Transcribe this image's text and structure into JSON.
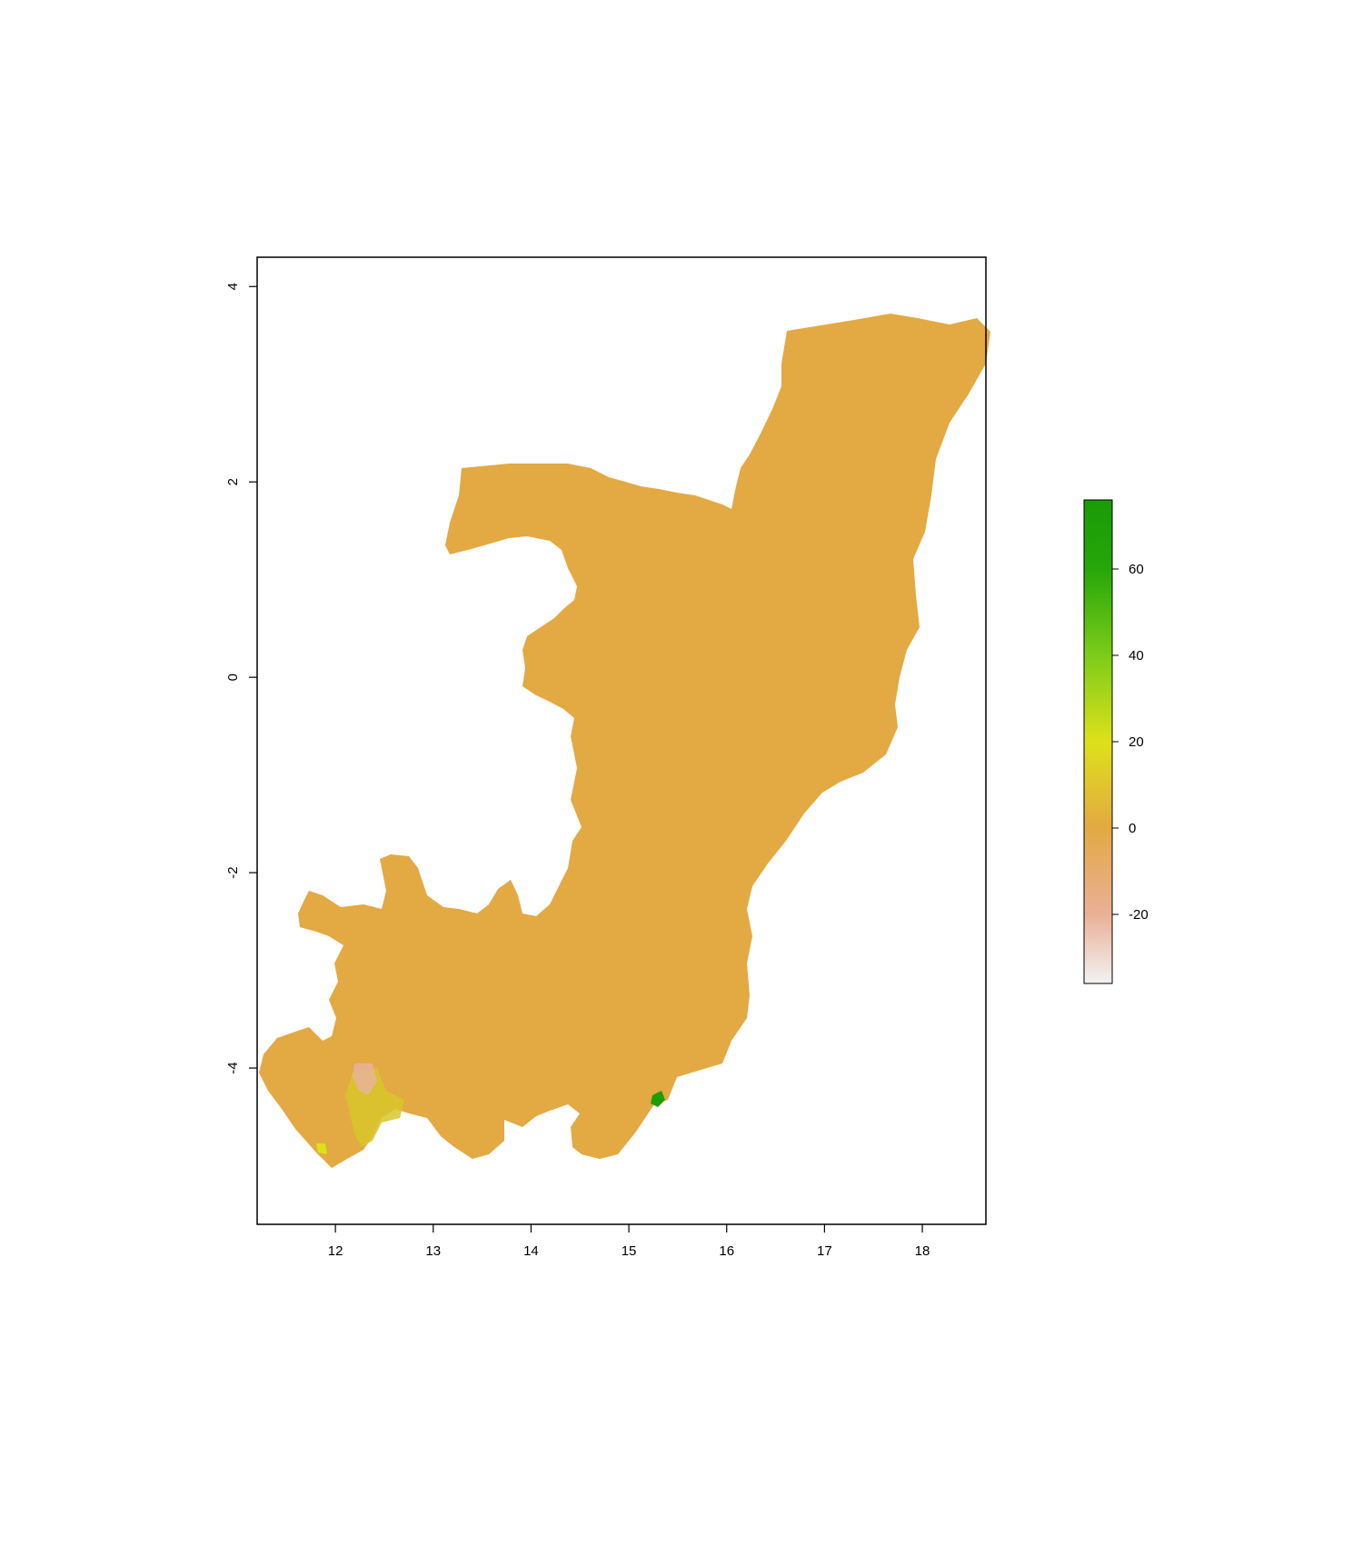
{
  "map": {
    "x_ticks": [
      {
        "value": 12,
        "label": "12"
      },
      {
        "value": 13,
        "label": "13"
      },
      {
        "value": 14,
        "label": "14"
      },
      {
        "value": 15,
        "label": "15"
      },
      {
        "value": 16,
        "label": "16"
      },
      {
        "value": 17,
        "label": "17"
      },
      {
        "value": 18,
        "label": "18"
      }
    ],
    "y_ticks": [
      {
        "value": 4,
        "label": "4"
      },
      {
        "value": 2,
        "label": "2"
      },
      {
        "value": 0,
        "label": "0"
      },
      {
        "value": -2,
        "label": "-2"
      },
      {
        "value": -4,
        "label": "-4"
      }
    ],
    "xlim": [
      11.2,
      18.65
    ],
    "ylim": [
      -5.6,
      4.3
    ],
    "land_value_color": "#e3a943",
    "background": "#ffffff"
  },
  "legend": {
    "range": [
      -36,
      76
    ],
    "ticks": [
      {
        "value": 60,
        "label": "60"
      },
      {
        "value": 40,
        "label": "40"
      },
      {
        "value": 20,
        "label": "20"
      },
      {
        "value": 0,
        "label": "0"
      },
      {
        "value": -20,
        "label": "-20"
      }
    ],
    "gradient_stops": [
      {
        "value": -36,
        "color": "#f2f2f2"
      },
      {
        "value": -20,
        "color": "#eab096"
      },
      {
        "value": 0,
        "color": "#e3a943"
      },
      {
        "value": 20,
        "color": "#dde11a"
      },
      {
        "value": 40,
        "color": "#7ccc19"
      },
      {
        "value": 60,
        "color": "#27a60a"
      },
      {
        "value": 76,
        "color": "#1a9b06"
      }
    ]
  }
}
